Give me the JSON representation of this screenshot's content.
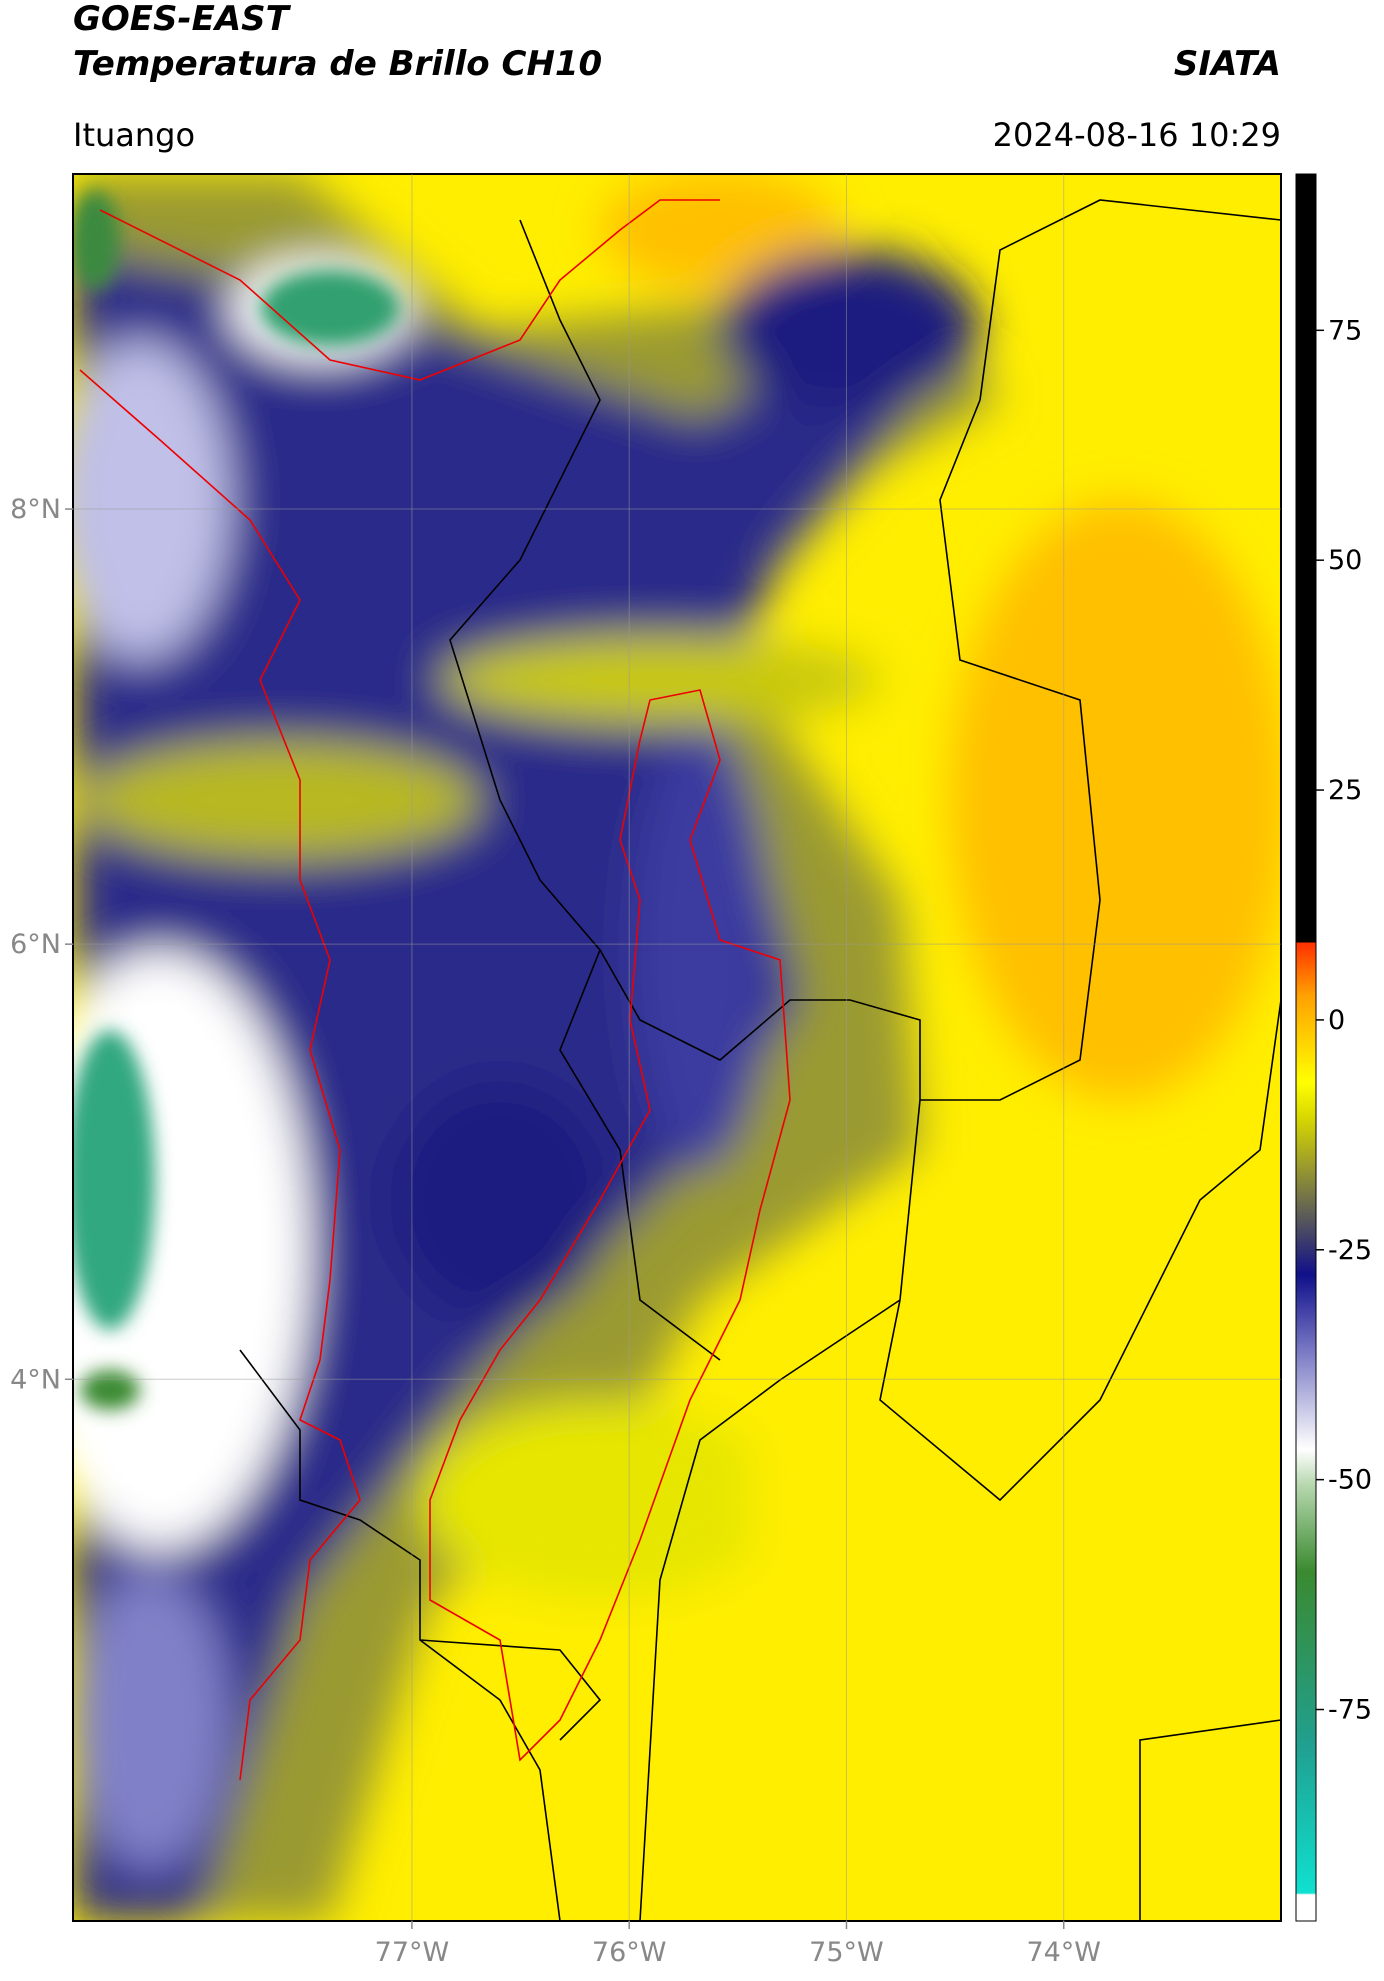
{
  "header": {
    "title": "GOES-EAST",
    "subtitle": "Temperatura de Brillo CH10",
    "source": "SIATA",
    "location": "Ituango",
    "timestamp": "2024-08-16 10:29"
  },
  "map": {
    "xlim": [
      -78.56,
      -73.0
    ],
    "ylim": [
      1.51,
      9.54
    ],
    "xticks": [
      {
        "value": -77,
        "label": "77°W"
      },
      {
        "value": -76,
        "label": "76°W"
      },
      {
        "value": -75,
        "label": "75°W"
      },
      {
        "value": -74,
        "label": "74°W"
      }
    ],
    "yticks": [
      {
        "value": 8,
        "label": "8°N"
      },
      {
        "value": 6,
        "label": "6°N"
      },
      {
        "value": 4,
        "label": "4°N"
      }
    ],
    "grid": true
  },
  "colorbar": {
    "clim": [
      -98,
      92
    ],
    "ticks": [
      75,
      50,
      25,
      0,
      -25,
      -50,
      -75
    ]
  }
}
